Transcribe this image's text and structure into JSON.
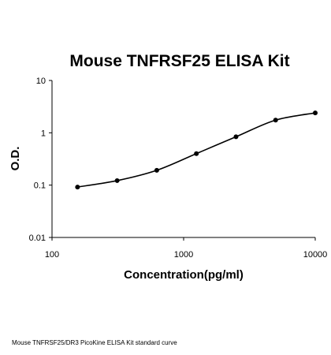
{
  "chart_data": {
    "type": "scatter",
    "title": "Mouse TNFRSF25 ELISA Kit",
    "xlabel": "Concentration(pg/ml)",
    "ylabel": "O.D.",
    "x_scale": "log",
    "y_scale": "log",
    "xlim": [
      100,
      10000
    ],
    "ylim": [
      0.01,
      10
    ],
    "x_ticks": [
      "100",
      "1000",
      "10000"
    ],
    "y_ticks": [
      "0.01",
      "0.1",
      "1",
      "10"
    ],
    "grid": false,
    "legend": "none",
    "series": [
      {
        "x": [
          156.25,
          312.5,
          625,
          1250,
          2500,
          5000,
          10000
        ],
        "y": [
          0.092,
          0.122,
          0.192,
          0.4,
          0.84,
          1.75,
          2.4
        ],
        "marker_color": "#000000",
        "line": "smooth fitted curve"
      }
    ]
  },
  "caption": "Mouse TNFRSF25/DR3 PicoKine ELISA Kit standard curve"
}
